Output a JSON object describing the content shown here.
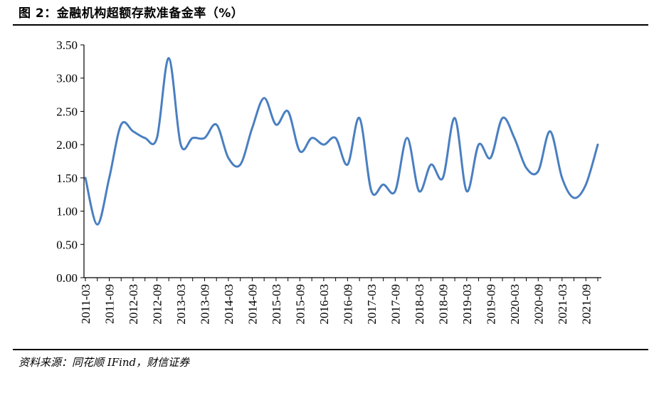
{
  "figure": {
    "title": "图 2：金融机构超额存款准备金率（%）",
    "source": "资料来源：同花顺 IFind，财信证券"
  },
  "chart_data": {
    "type": "line",
    "title": "",
    "xlabel": "",
    "ylabel": "",
    "ylim": [
      0,
      3.5
    ],
    "yticks": [
      "0.00",
      "0.50",
      "1.00",
      "1.50",
      "2.00",
      "2.50",
      "3.00",
      "3.50"
    ],
    "x_tick_labels": [
      "2011-03",
      "2011-09",
      "2012-03",
      "2012-09",
      "2013-03",
      "2013-09",
      "2014-03",
      "2014-09",
      "2015-03",
      "2015-09",
      "2016-03",
      "2016-09",
      "2017-03",
      "2017-09",
      "2018-03",
      "2018-09",
      "2019-03",
      "2019-09",
      "2020-03",
      "2020-09",
      "2021-03",
      "2021-09"
    ],
    "grid": false,
    "legend": "none",
    "series": [
      {
        "color": "#4a7fc1",
        "x": [
          "2011-03",
          "2011-06",
          "2011-09",
          "2011-12",
          "2012-03",
          "2012-06",
          "2012-09",
          "2012-12",
          "2013-03",
          "2013-06",
          "2013-09",
          "2013-12",
          "2014-03",
          "2014-06",
          "2014-09",
          "2014-12",
          "2015-03",
          "2015-06",
          "2015-09",
          "2015-12",
          "2016-03",
          "2016-06",
          "2016-09",
          "2016-12",
          "2017-03",
          "2017-06",
          "2017-09",
          "2017-12",
          "2018-03",
          "2018-06",
          "2018-09",
          "2018-12",
          "2019-03",
          "2019-06",
          "2019-09",
          "2019-12",
          "2020-03",
          "2020-06",
          "2020-09",
          "2020-12",
          "2021-03",
          "2021-06",
          "2021-09",
          "2021-12"
        ],
        "values": [
          1.5,
          0.8,
          1.5,
          2.3,
          2.2,
          2.1,
          2.1,
          3.3,
          2.0,
          2.1,
          2.1,
          2.3,
          1.8,
          1.7,
          2.25,
          2.7,
          2.3,
          2.5,
          1.9,
          2.1,
          2.0,
          2.1,
          1.7,
          2.4,
          1.3,
          1.4,
          1.3,
          2.1,
          1.3,
          1.7,
          1.5,
          2.4,
          1.3,
          2.0,
          1.8,
          2.4,
          2.1,
          1.65,
          1.6,
          2.2,
          1.5,
          1.2,
          1.4,
          2.0
        ]
      }
    ]
  }
}
